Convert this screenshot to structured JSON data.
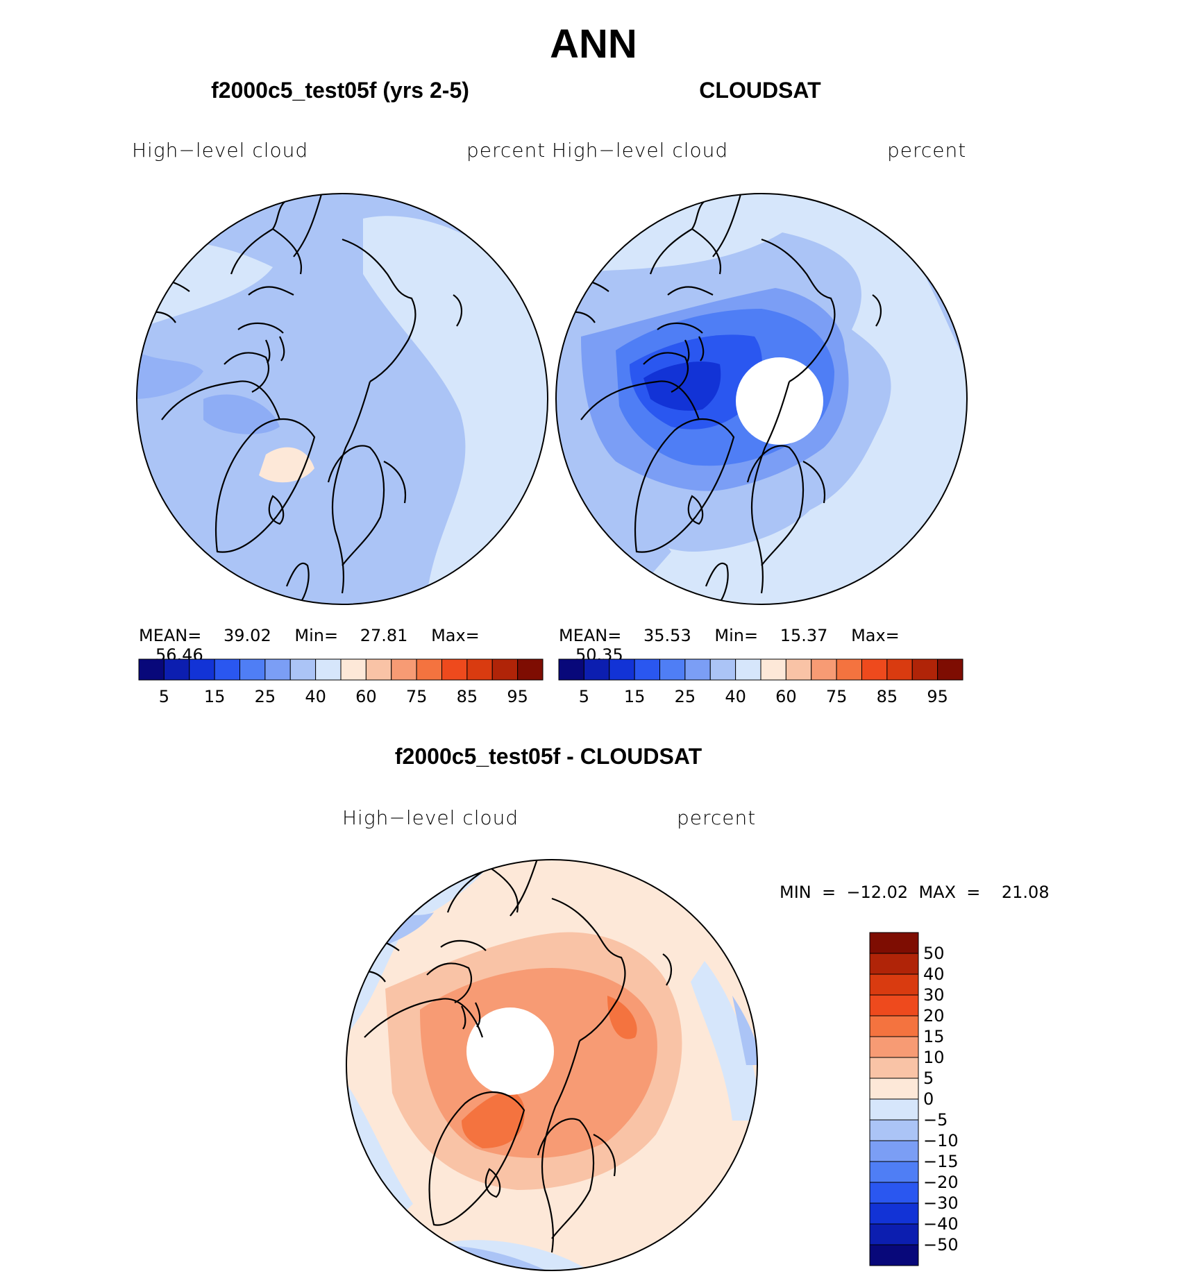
{
  "title": "ANN",
  "panels": [
    {
      "title": "f2000c5_test05f (yrs 2-5)",
      "left_label": "High−level  cloud",
      "right_label": "percent",
      "stats": {
        "mean_label": "MEAN=",
        "mean": "39.02",
        "min_label": "Min=",
        "min": "27.81",
        "max_label": "Max=",
        "max": "56.46"
      }
    },
    {
      "title": "CLOUDSAT",
      "left_label": "High−level  cloud",
      "right_label": "percent",
      "stats": {
        "mean_label": "MEAN=",
        "mean": "35.53",
        "min_label": "Min=",
        "min": "15.37",
        "max_label": "Max=",
        "max": "50.35"
      }
    }
  ],
  "diff": {
    "title": "f2000c5_test05f - CLOUDSAT",
    "left_label": "High−level  cloud",
    "right_label": "percent",
    "minmax": "MIN  =  −12.02  MAX  =    21.08"
  },
  "abs_colorbar": {
    "colors": [
      "#08087a",
      "#0c1eb0",
      "#1233d6",
      "#2a57f0",
      "#4f7ef5",
      "#7b9ef5",
      "#abc4f6",
      "#d6e6fb",
      "#fde8d8",
      "#f9c3a6",
      "#f79b74",
      "#f4733f",
      "#ee4a1d",
      "#d93b10",
      "#b02408",
      "#7e0d02"
    ],
    "labels": [
      "5",
      "15",
      "25",
      "40",
      "60",
      "75",
      "85",
      "95"
    ]
  },
  "diff_colorbar": {
    "colors_top_to_bottom": [
      "#7e0d02",
      "#b02408",
      "#d93b10",
      "#ee4a1d",
      "#f4733f",
      "#f79b74",
      "#f9c3a6",
      "#fde8d8",
      "#d6e6fb",
      "#abc4f6",
      "#7b9ef5",
      "#4f7ef5",
      "#2a57f0",
      "#1233d6",
      "#0c1eb0",
      "#08087a"
    ],
    "labels": [
      "50",
      "40",
      "30",
      "20",
      "15",
      "10",
      "5",
      "0",
      "−5",
      "−10",
      "−15",
      "−20",
      "−30",
      "−40",
      "−50"
    ]
  }
}
